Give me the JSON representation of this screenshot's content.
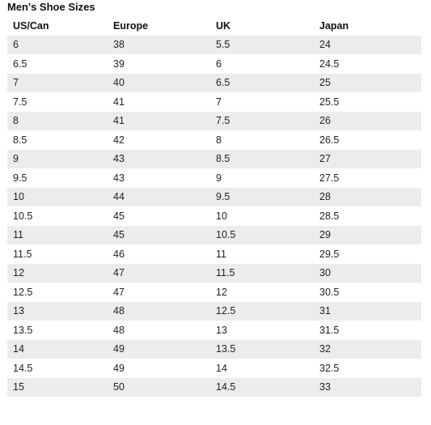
{
  "title": "Men's Shoe Sizes",
  "headers": [
    "US/Can",
    "Europe",
    "UK",
    "Japan"
  ],
  "rows": [
    [
      "6",
      "38",
      "5.5",
      "24"
    ],
    [
      "6.5",
      "39",
      "6",
      "24.5"
    ],
    [
      "7",
      "40",
      "6.5",
      "25"
    ],
    [
      "7.5",
      "41",
      "7",
      "25.5"
    ],
    [
      "8",
      "41",
      "7.5",
      "26"
    ],
    [
      "8.5",
      "42",
      "8",
      "26.5"
    ],
    [
      "9",
      "43",
      "8.5",
      "27"
    ],
    [
      "9.5",
      "43",
      "9",
      "27.5"
    ],
    [
      "10",
      "44",
      "9.5",
      "28"
    ],
    [
      "10.5",
      "45",
      "10",
      "28.5"
    ],
    [
      "11",
      "45",
      "10.5",
      "29"
    ],
    [
      "11.5",
      "46",
      "11",
      "29.5"
    ],
    [
      "12",
      "47",
      "11.5",
      "30"
    ],
    [
      "12.5",
      "47",
      "12",
      "30.5"
    ],
    [
      "13",
      "48",
      "12.5",
      "31"
    ],
    [
      "13.5",
      "48",
      "13",
      "31.5"
    ],
    [
      "14",
      "49",
      "13.5",
      "32"
    ],
    [
      "14.5",
      "49",
      "14",
      "32.5"
    ],
    [
      "15",
      "50",
      "14.5",
      "33"
    ]
  ],
  "colors": {
    "stripe": "#ececec",
    "background": "#ffffff",
    "text": "#111111"
  }
}
